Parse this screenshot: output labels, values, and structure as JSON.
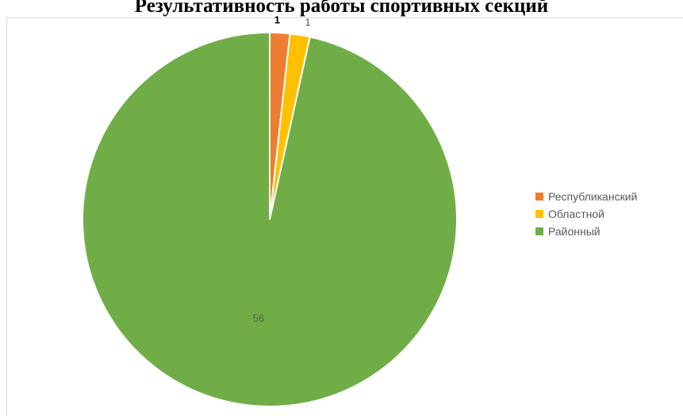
{
  "title": "Результативность работы спортивных секций",
  "chart_data": {
    "type": "pie",
    "title": "Результативность работы спортивных секций",
    "categories": [
      "Республиканский",
      "Областной",
      "Районный"
    ],
    "values": [
      1,
      1,
      56
    ],
    "data_labels": [
      "1",
      "1",
      "56"
    ],
    "colors": [
      "#ed7d31",
      "#ffc000",
      "#70ad47"
    ],
    "legend_position": "right",
    "start_angle_deg": 0,
    "direction": "clockwise"
  }
}
